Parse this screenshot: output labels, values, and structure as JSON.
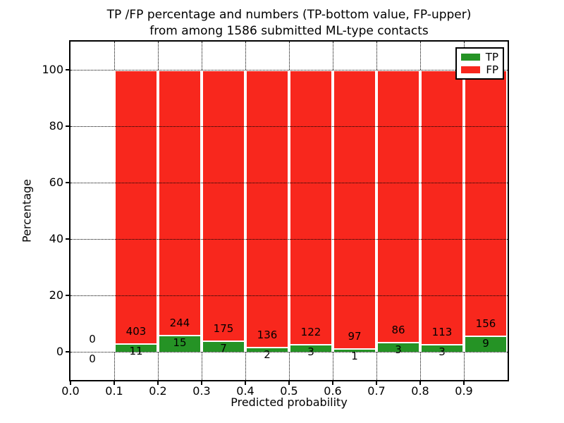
{
  "title": {
    "line1": "TP /FP percentage and numbers (TP-bottom value, FP-upper)",
    "line2": "from among 1586 submitted ML-type contacts"
  },
  "axes": {
    "xlabel": "Predicted probability",
    "ylabel": "Percentage"
  },
  "legend": {
    "position": "upper right",
    "items": [
      {
        "label": "TP",
        "color": "#259325"
      },
      {
        "label": "FP",
        "color": "#f8271d"
      }
    ]
  },
  "colors": {
    "tp_green": "#259325",
    "fp_red": "#f8271d",
    "grid": "#000000",
    "background": "#ffffff",
    "bar_edge": "#ffffff"
  },
  "chart_data": {
    "type": "bar",
    "stacked": true,
    "normalized_to_percent": 100,
    "title": "TP /FP percentage and numbers (TP-bottom value, FP-upper) from among 1586 submitted ML-type contacts",
    "xlabel": "Predicted probability",
    "ylabel": "Percentage",
    "xlim": [
      0.0,
      1.0
    ],
    "ylim": [
      -10,
      110
    ],
    "grid": "dotted",
    "xticks": [
      "0.0",
      "0.1",
      "0.2",
      "0.3",
      "0.4",
      "0.5",
      "0.6",
      "0.7",
      "0.8",
      "0.9"
    ],
    "yticks": [
      0,
      20,
      40,
      60,
      80,
      100
    ],
    "bin_edges": [
      0.0,
      0.1,
      0.2,
      0.3,
      0.4,
      0.5,
      0.6,
      0.7,
      0.8,
      0.9,
      1.0
    ],
    "series": [
      {
        "name": "TP",
        "color": "#259325",
        "counts": [
          0,
          11,
          15,
          7,
          2,
          3,
          1,
          3,
          3,
          9
        ]
      },
      {
        "name": "FP",
        "color": "#f8271d",
        "counts": [
          0,
          403,
          244,
          175,
          136,
          122,
          97,
          86,
          113,
          156
        ]
      }
    ],
    "total_contacts": 1586,
    "legend_position": "upper right",
    "note": "Each bar stacked to 100%; TP percentage = TP/(TP+FP) per bin; count labels shown near green/red boundary"
  }
}
